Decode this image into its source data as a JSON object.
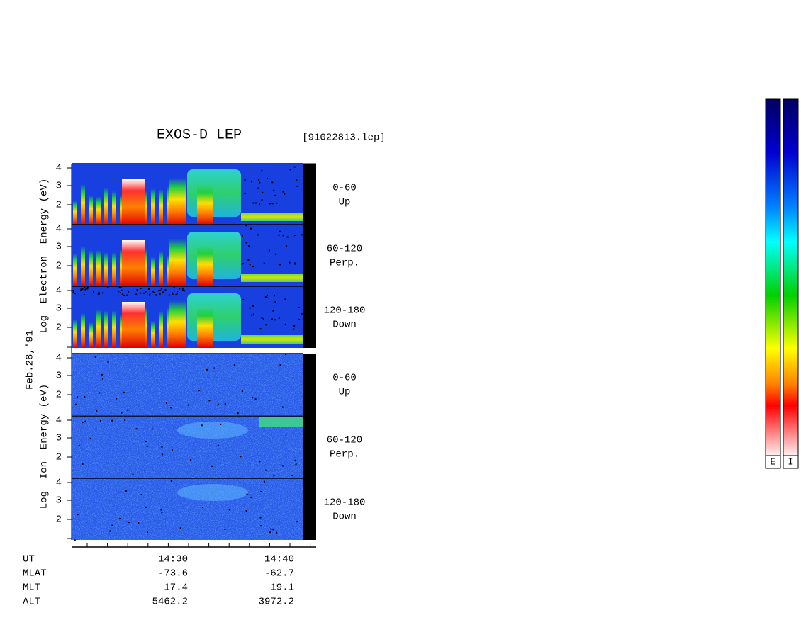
{
  "title": "EXOS-D LEP",
  "file": "[91022813.lep]",
  "date": "Feb.28,'91",
  "electron_label": "Log  Electron  Energy (eV)",
  "ion_label": "Log  Ion  Energy (eV)",
  "panels": [
    {
      "species": "electron",
      "range": "0-60",
      "direction": "Up",
      "yticks": [
        "4",
        "3",
        "2"
      ]
    },
    {
      "species": "electron",
      "range": "60-120",
      "direction": "Perp.",
      "yticks": [
        "4",
        "3",
        "2"
      ]
    },
    {
      "species": "electron",
      "range": "120-180",
      "direction": "Down",
      "yticks": [
        "4",
        "3",
        "2"
      ]
    },
    {
      "species": "ion",
      "range": "0-60",
      "direction": "Up",
      "yticks": [
        "4",
        "3",
        "2"
      ]
    },
    {
      "species": "ion",
      "range": "60-120",
      "direction": "Perp.",
      "yticks": [
        "4",
        "3",
        "2"
      ]
    },
    {
      "species": "ion",
      "range": "120-180",
      "direction": "Down",
      "yticks": [
        "4",
        "3",
        "2"
      ]
    }
  ],
  "ephemeris": [
    {
      "name": "UT",
      "values": [
        "14:30",
        "14:40"
      ]
    },
    {
      "name": "MLAT",
      "values": [
        "-73.6",
        "-62.7"
      ]
    },
    {
      "name": "MLT",
      "values": [
        "17.4",
        "19.1"
      ]
    },
    {
      "name": "ALT",
      "values": [
        "5462.2",
        "3972.2"
      ]
    }
  ],
  "colorbar_labels": [
    "E",
    "I"
  ]
}
